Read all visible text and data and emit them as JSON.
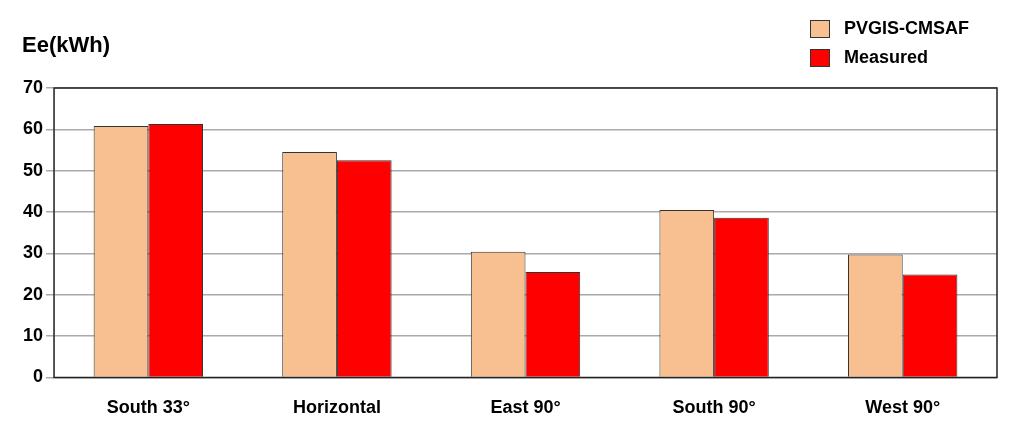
{
  "chart_data": {
    "type": "bar",
    "ylabel": "Ee(kWh)",
    "categories": [
      "South 33°",
      "Horizontal",
      "East 90°",
      "South 90°",
      "West 90°"
    ],
    "series": [
      {
        "name": "PVGIS-CMSAF",
        "color": "#f8c090",
        "values": [
          60.8,
          54.5,
          30.4,
          40.5,
          29.7
        ]
      },
      {
        "name": "Measured",
        "color": "#ff0000",
        "values": [
          61.3,
          52.5,
          25.5,
          38.6,
          24.9
        ]
      }
    ],
    "ylim": [
      0,
      70
    ],
    "yticks": [
      0,
      10,
      20,
      30,
      40,
      50,
      60,
      70
    ],
    "grid": "y",
    "legend": "top right"
  }
}
